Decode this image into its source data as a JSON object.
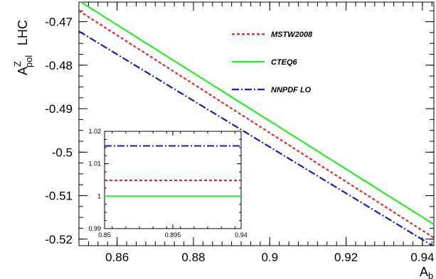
{
  "chart_data": [
    {
      "type": "line",
      "title": "",
      "xlabel": "A_b",
      "ylabel": "A_pol^Z",
      "ylabel_extra": "LHC",
      "xlim": [
        0.85,
        0.943
      ],
      "ylim": [
        -0.5215,
        -0.4655
      ],
      "xticks": [
        0.86,
        0.88,
        0.9,
        0.92,
        0.94
      ],
      "xtick_labels": [
        "0.86",
        "0.88",
        "0.9",
        "0.92",
        "0.94"
      ],
      "yticks": [
        -0.47,
        -0.48,
        -0.49,
        -0.5,
        -0.51,
        -0.52
      ],
      "ytick_labels": [
        "-0.47",
        "-0.48",
        "-0.49",
        "-0.5",
        "-0.51",
        "-0.52"
      ],
      "grid": false,
      "legend_position": "top-right",
      "series": [
        {
          "name": "MSTW2008",
          "color": "#e8231f",
          "style": "dotted",
          "x": [
            0.85,
            0.943
          ],
          "y": [
            -0.4675,
            -0.5197
          ]
        },
        {
          "name": "CTEQ6",
          "color": "#22ee22",
          "style": "solid",
          "x": [
            0.85,
            0.943
          ],
          "y": [
            -0.4652,
            -0.5166
          ]
        },
        {
          "name": "NNPDF LO",
          "color": "#1818cc",
          "style": "dashdot",
          "x": [
            0.85,
            0.943
          ],
          "y": [
            -0.4722,
            -0.5217
          ]
        }
      ]
    },
    {
      "type": "line",
      "title": "",
      "xlabel": "",
      "ylabel": "",
      "xlim": [
        0.85,
        0.94
      ],
      "ylim": [
        0.99,
        1.02
      ],
      "xticks": [
        0.85,
        0.895,
        0.94
      ],
      "xtick_labels": [
        "0.85",
        "0.895",
        "0.94"
      ],
      "yticks": [
        0.99,
        1,
        1.01,
        1.02
      ],
      "ytick_labels": [
        "0.99",
        "1",
        "1.01",
        "1.02"
      ],
      "grid": false,
      "series": [
        {
          "name": "MSTW2008",
          "color": "#e8231f",
          "style": "dotted",
          "x": [
            0.85,
            0.94
          ],
          "y": [
            1.0049,
            1.0049
          ]
        },
        {
          "name": "CTEQ6",
          "color": "#22ee22",
          "style": "solid",
          "x": [
            0.85,
            0.94
          ],
          "y": [
            1.0,
            1.0
          ]
        },
        {
          "name": "NNPDF LO",
          "color": "#1818cc",
          "style": "dashdot",
          "x": [
            0.85,
            0.94
          ],
          "y": [
            1.0155,
            1.0155
          ]
        }
      ]
    }
  ],
  "labels": {
    "x_main": "A",
    "x_sub": "b",
    "y_main": "A",
    "y_sup": "Z",
    "y_sub": "pol",
    "y_extra": "LHC"
  }
}
